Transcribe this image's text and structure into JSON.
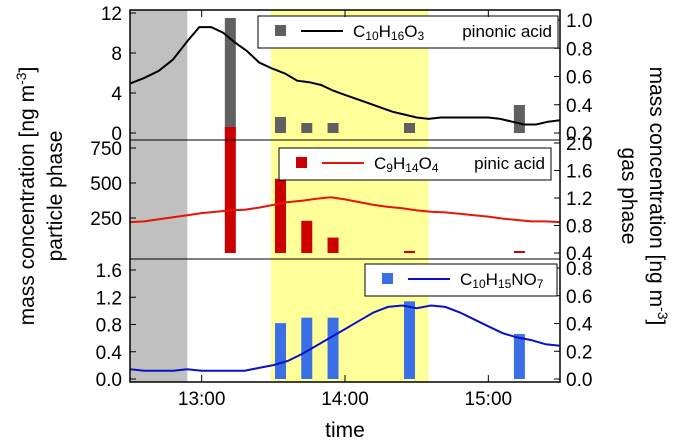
{
  "colors": {
    "night_shade": "#c0c0c0",
    "period_shade": "#ffff99",
    "pinonic": "#606060",
    "pinic": "#cc0000",
    "mbtca": "#3b6fe6",
    "pinonic_line": "#000000",
    "pinic_line": "#e8140a",
    "mbtca_line": "#0a10c8"
  },
  "chart_data": {
    "type": "multi-panel bar + line",
    "xlabel": "time",
    "x_ticks": [
      "13:00",
      "14:00",
      "15:00"
    ],
    "x_range": [
      "12:30",
      "15:30"
    ],
    "shaded_regions": [
      {
        "kind": "night",
        "start": "12:30",
        "end": "12:54"
      },
      {
        "kind": "highlight",
        "start": "13:29",
        "end": "14:35"
      }
    ],
    "left_axis_title": [
      "mass concentration [ng m",
      "-3",
      "]",
      "particle phase"
    ],
    "right_axis_title": [
      "mass concentration [ng m",
      "-3",
      "]",
      "gas phase"
    ],
    "panels": [
      {
        "id": "pinonic",
        "legend_formula": [
          [
            "C",
            ""
          ],
          [
            "10",
            "sub"
          ],
          [
            "H",
            ""
          ],
          [
            "16",
            "sub"
          ],
          [
            "O",
            ""
          ],
          [
            "3",
            "sub"
          ]
        ],
        "legend_name": "pinonic acid",
        "left_ticks": [
          "0",
          "4",
          "8",
          "12"
        ],
        "left_tick_values": [
          0,
          4,
          8,
          12
        ],
        "left_range": [
          0,
          12
        ],
        "right_ticks": [
          "0.2",
          "0.4",
          "0.6",
          "0.8",
          "1.0"
        ],
        "right_tick_values": [
          0.2,
          0.4,
          0.6,
          0.8,
          1.0
        ],
        "right_range": [
          0.2,
          1.0
        ],
        "bars": [
          {
            "time": "13:12",
            "value": 11.5
          },
          {
            "time": "13:33",
            "value": 1.6
          },
          {
            "time": "13:44",
            "value": 1.0
          },
          {
            "time": "13:55",
            "value": 1.0
          },
          {
            "time": "14:27",
            "value": 1.0
          },
          {
            "time": "15:13",
            "value": 2.8
          }
        ],
        "line": [
          [
            "12:30",
            0.55
          ],
          [
            "12:36",
            0.59
          ],
          [
            "12:42",
            0.64
          ],
          [
            "12:48",
            0.72
          ],
          [
            "12:54",
            0.85
          ],
          [
            "12:59",
            0.95
          ],
          [
            "13:04",
            0.95
          ],
          [
            "13:09",
            0.91
          ],
          [
            "13:14",
            0.84
          ],
          [
            "13:19",
            0.78
          ],
          [
            "13:24",
            0.7
          ],
          [
            "13:29",
            0.66
          ],
          [
            "13:35",
            0.62
          ],
          [
            "13:40",
            0.57
          ],
          [
            "13:45",
            0.56
          ],
          [
            "13:50",
            0.54
          ],
          [
            "13:55",
            0.5
          ],
          [
            "14:00",
            0.47
          ],
          [
            "14:05",
            0.44
          ],
          [
            "14:10",
            0.41
          ],
          [
            "14:15",
            0.38
          ],
          [
            "14:20",
            0.35
          ],
          [
            "14:25",
            0.33
          ],
          [
            "14:30",
            0.31
          ],
          [
            "14:35",
            0.3
          ],
          [
            "14:40",
            0.31
          ],
          [
            "14:45",
            0.31
          ],
          [
            "14:50",
            0.31
          ],
          [
            "14:55",
            0.31
          ],
          [
            "15:00",
            0.31
          ],
          [
            "15:05",
            0.3
          ],
          [
            "15:10",
            0.28
          ],
          [
            "15:15",
            0.26
          ],
          [
            "15:20",
            0.26
          ],
          [
            "15:25",
            0.28
          ],
          [
            "15:30",
            0.29
          ]
        ]
      },
      {
        "id": "pinic",
        "legend_formula": [
          [
            "C",
            ""
          ],
          [
            "9",
            "sub"
          ],
          [
            "H",
            ""
          ],
          [
            "14",
            "sub"
          ],
          [
            "O",
            ""
          ],
          [
            "4",
            "sub"
          ]
        ],
        "legend_name": "pinic acid",
        "left_ticks": [
          "250",
          "500",
          "750"
        ],
        "left_tick_values": [
          250,
          500,
          750
        ],
        "left_range": [
          0,
          1000
        ],
        "right_ticks": [
          "0.4",
          "0.8",
          "1.2",
          "1.6",
          "2.0"
        ],
        "right_tick_values": [
          0.4,
          0.8,
          1.2,
          1.6,
          2.0
        ],
        "right_range": [
          0.4,
          2.0
        ],
        "bars": [
          {
            "time": "13:12",
            "value": 900
          },
          {
            "time": "13:33",
            "value": 530
          },
          {
            "time": "13:44",
            "value": 230
          },
          {
            "time": "13:55",
            "value": 110
          },
          {
            "time": "14:27",
            "value": 15
          },
          {
            "time": "15:13",
            "value": 8
          }
        ],
        "line": [
          [
            "12:30",
            0.85
          ],
          [
            "12:36",
            0.86
          ],
          [
            "12:42",
            0.89
          ],
          [
            "12:48",
            0.92
          ],
          [
            "12:54",
            0.95
          ],
          [
            "13:00",
            0.98
          ],
          [
            "13:06",
            1.0
          ],
          [
            "13:12",
            1.02
          ],
          [
            "13:18",
            1.03
          ],
          [
            "13:24",
            1.06
          ],
          [
            "13:30",
            1.1
          ],
          [
            "13:36",
            1.14
          ],
          [
            "13:42",
            1.16
          ],
          [
            "13:48",
            1.19
          ],
          [
            "13:54",
            1.21
          ],
          [
            "14:00",
            1.18
          ],
          [
            "14:06",
            1.14
          ],
          [
            "14:12",
            1.1
          ],
          [
            "14:18",
            1.07
          ],
          [
            "14:24",
            1.05
          ],
          [
            "14:30",
            1.02
          ],
          [
            "14:36",
            1.0
          ],
          [
            "14:42",
            0.99
          ],
          [
            "14:48",
            0.97
          ],
          [
            "14:54",
            0.95
          ],
          [
            "15:00",
            0.93
          ],
          [
            "15:06",
            0.9
          ],
          [
            "15:12",
            0.88
          ],
          [
            "15:18",
            0.86
          ],
          [
            "15:24",
            0.86
          ],
          [
            "15:30",
            0.85
          ]
        ]
      },
      {
        "id": "mbtca",
        "legend_formula": [
          [
            "C",
            ""
          ],
          [
            "10",
            "sub"
          ],
          [
            "H",
            ""
          ],
          [
            "15",
            "sub"
          ],
          [
            "NO",
            ""
          ],
          [
            "7",
            "sub"
          ]
        ],
        "legend_name": "",
        "left_ticks": [
          "0.0",
          "0.4",
          "0.8",
          "1.2",
          "1.6"
        ],
        "left_tick_values": [
          0,
          0.4,
          0.8,
          1.2,
          1.6
        ],
        "left_range": [
          0,
          1.6
        ],
        "right_ticks": [
          "0.0",
          "0.2",
          "0.4",
          "0.6",
          "0.8"
        ],
        "right_tick_values": [
          0,
          0.2,
          0.4,
          0.6,
          0.8
        ],
        "right_range": [
          0,
          0.8
        ],
        "bars": [
          {
            "time": "13:33",
            "value": 0.82
          },
          {
            "time": "13:44",
            "value": 0.9
          },
          {
            "time": "13:55",
            "value": 0.9
          },
          {
            "time": "14:27",
            "value": 1.14
          },
          {
            "time": "15:13",
            "value": 0.66
          }
        ],
        "line": [
          [
            "12:30",
            0.07
          ],
          [
            "12:36",
            0.06
          ],
          [
            "12:42",
            0.06
          ],
          [
            "12:48",
            0.06
          ],
          [
            "12:54",
            0.07
          ],
          [
            "13:00",
            0.06
          ],
          [
            "13:06",
            0.06
          ],
          [
            "13:12",
            0.06
          ],
          [
            "13:18",
            0.06
          ],
          [
            "13:24",
            0.08
          ],
          [
            "13:30",
            0.1
          ],
          [
            "13:36",
            0.13
          ],
          [
            "13:42",
            0.18
          ],
          [
            "13:48",
            0.24
          ],
          [
            "13:54",
            0.3
          ],
          [
            "14:00",
            0.36
          ],
          [
            "14:06",
            0.42
          ],
          [
            "14:12",
            0.48
          ],
          [
            "14:18",
            0.52
          ],
          [
            "14:24",
            0.53
          ],
          [
            "14:30",
            0.51
          ],
          [
            "14:36",
            0.53
          ],
          [
            "14:42",
            0.52
          ],
          [
            "14:48",
            0.48
          ],
          [
            "14:54",
            0.43
          ],
          [
            "15:00",
            0.38
          ],
          [
            "15:06",
            0.33
          ],
          [
            "15:12",
            0.3
          ],
          [
            "15:18",
            0.28
          ],
          [
            "15:24",
            0.25
          ],
          [
            "15:30",
            0.24
          ]
        ]
      }
    ]
  }
}
